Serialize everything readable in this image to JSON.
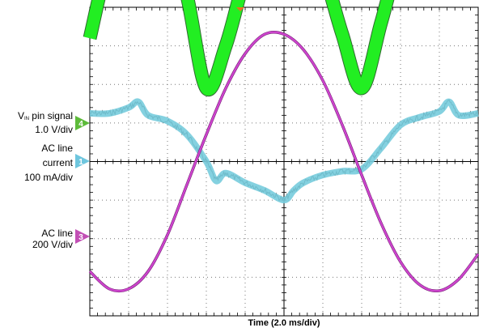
{
  "chart_data": {
    "type": "line",
    "title": "",
    "xlabel": "Time (2.0 ms/div)",
    "ylabel": "",
    "grid": true,
    "x_divisions": 10,
    "y_divisions": 8,
    "x_unit": "ms",
    "x_range": [
      0,
      20
    ],
    "series": [
      {
        "channel": "4",
        "name_line1_prefix": "V",
        "name_subscript": "IN",
        "name_line1_suffix": " pin signal",
        "scale": "1.0 V/div",
        "color": "#22ee22",
        "marker_color": "#5dbb3a",
        "description": "rectified sine envelope, band",
        "x": [
          0,
          1,
          2,
          3,
          4,
          5,
          6,
          7,
          8,
          9,
          10,
          11,
          12,
          13,
          14,
          15,
          16,
          17,
          18,
          19,
          20
        ],
        "y": [
          3.2,
          5.3,
          6.3,
          6.5,
          5.9,
          4.3,
          1.9,
          3.0,
          4.8,
          6.1,
          6.6,
          6.2,
          5.0,
          3.3,
          1.9,
          3.6,
          5.4,
          6.4,
          6.6,
          6.4,
          5.6
        ]
      },
      {
        "channel": "1",
        "name_line1": "AC line",
        "name_line2": "current",
        "scale": "100 mA/div",
        "color": "#77ccdd",
        "marker_color": "#6ec6de",
        "x": [
          0,
          1,
          2,
          2.5,
          3,
          4,
          5,
          6,
          6.5,
          7,
          8,
          9,
          10,
          10.5,
          11,
          12,
          13,
          14,
          15,
          16,
          17,
          18,
          18.5,
          19,
          20
        ],
        "y": [
          1.25,
          1.25,
          1.4,
          1.55,
          1.2,
          1.05,
          0.7,
          0.0,
          -0.5,
          -0.3,
          -0.55,
          -0.75,
          -1.0,
          -0.75,
          -0.55,
          -0.35,
          -0.25,
          -0.2,
          0.35,
          0.95,
          1.15,
          1.3,
          1.55,
          1.2,
          1.25
        ]
      },
      {
        "channel": "3",
        "name_line1": "AC line",
        "scale": "200 V/div",
        "color": "#cc44cc",
        "marker_color": "#c24fb5",
        "description": "sinusoid, ~16.7 ms period (60 Hz)",
        "x": [
          0,
          1,
          2,
          3,
          4,
          5,
          6,
          7,
          8,
          9,
          10,
          11,
          12,
          13,
          14,
          15,
          16,
          17,
          18,
          19,
          20
        ],
        "y": [
          -2.85,
          -3.3,
          -3.3,
          -2.85,
          -1.9,
          -0.6,
          0.7,
          1.9,
          2.8,
          3.3,
          3.3,
          2.9,
          2.1,
          0.95,
          -0.35,
          -1.6,
          -2.6,
          -3.2,
          -3.35,
          -3.05,
          -2.4
        ]
      }
    ],
    "top_marker_color": "#e87020"
  }
}
